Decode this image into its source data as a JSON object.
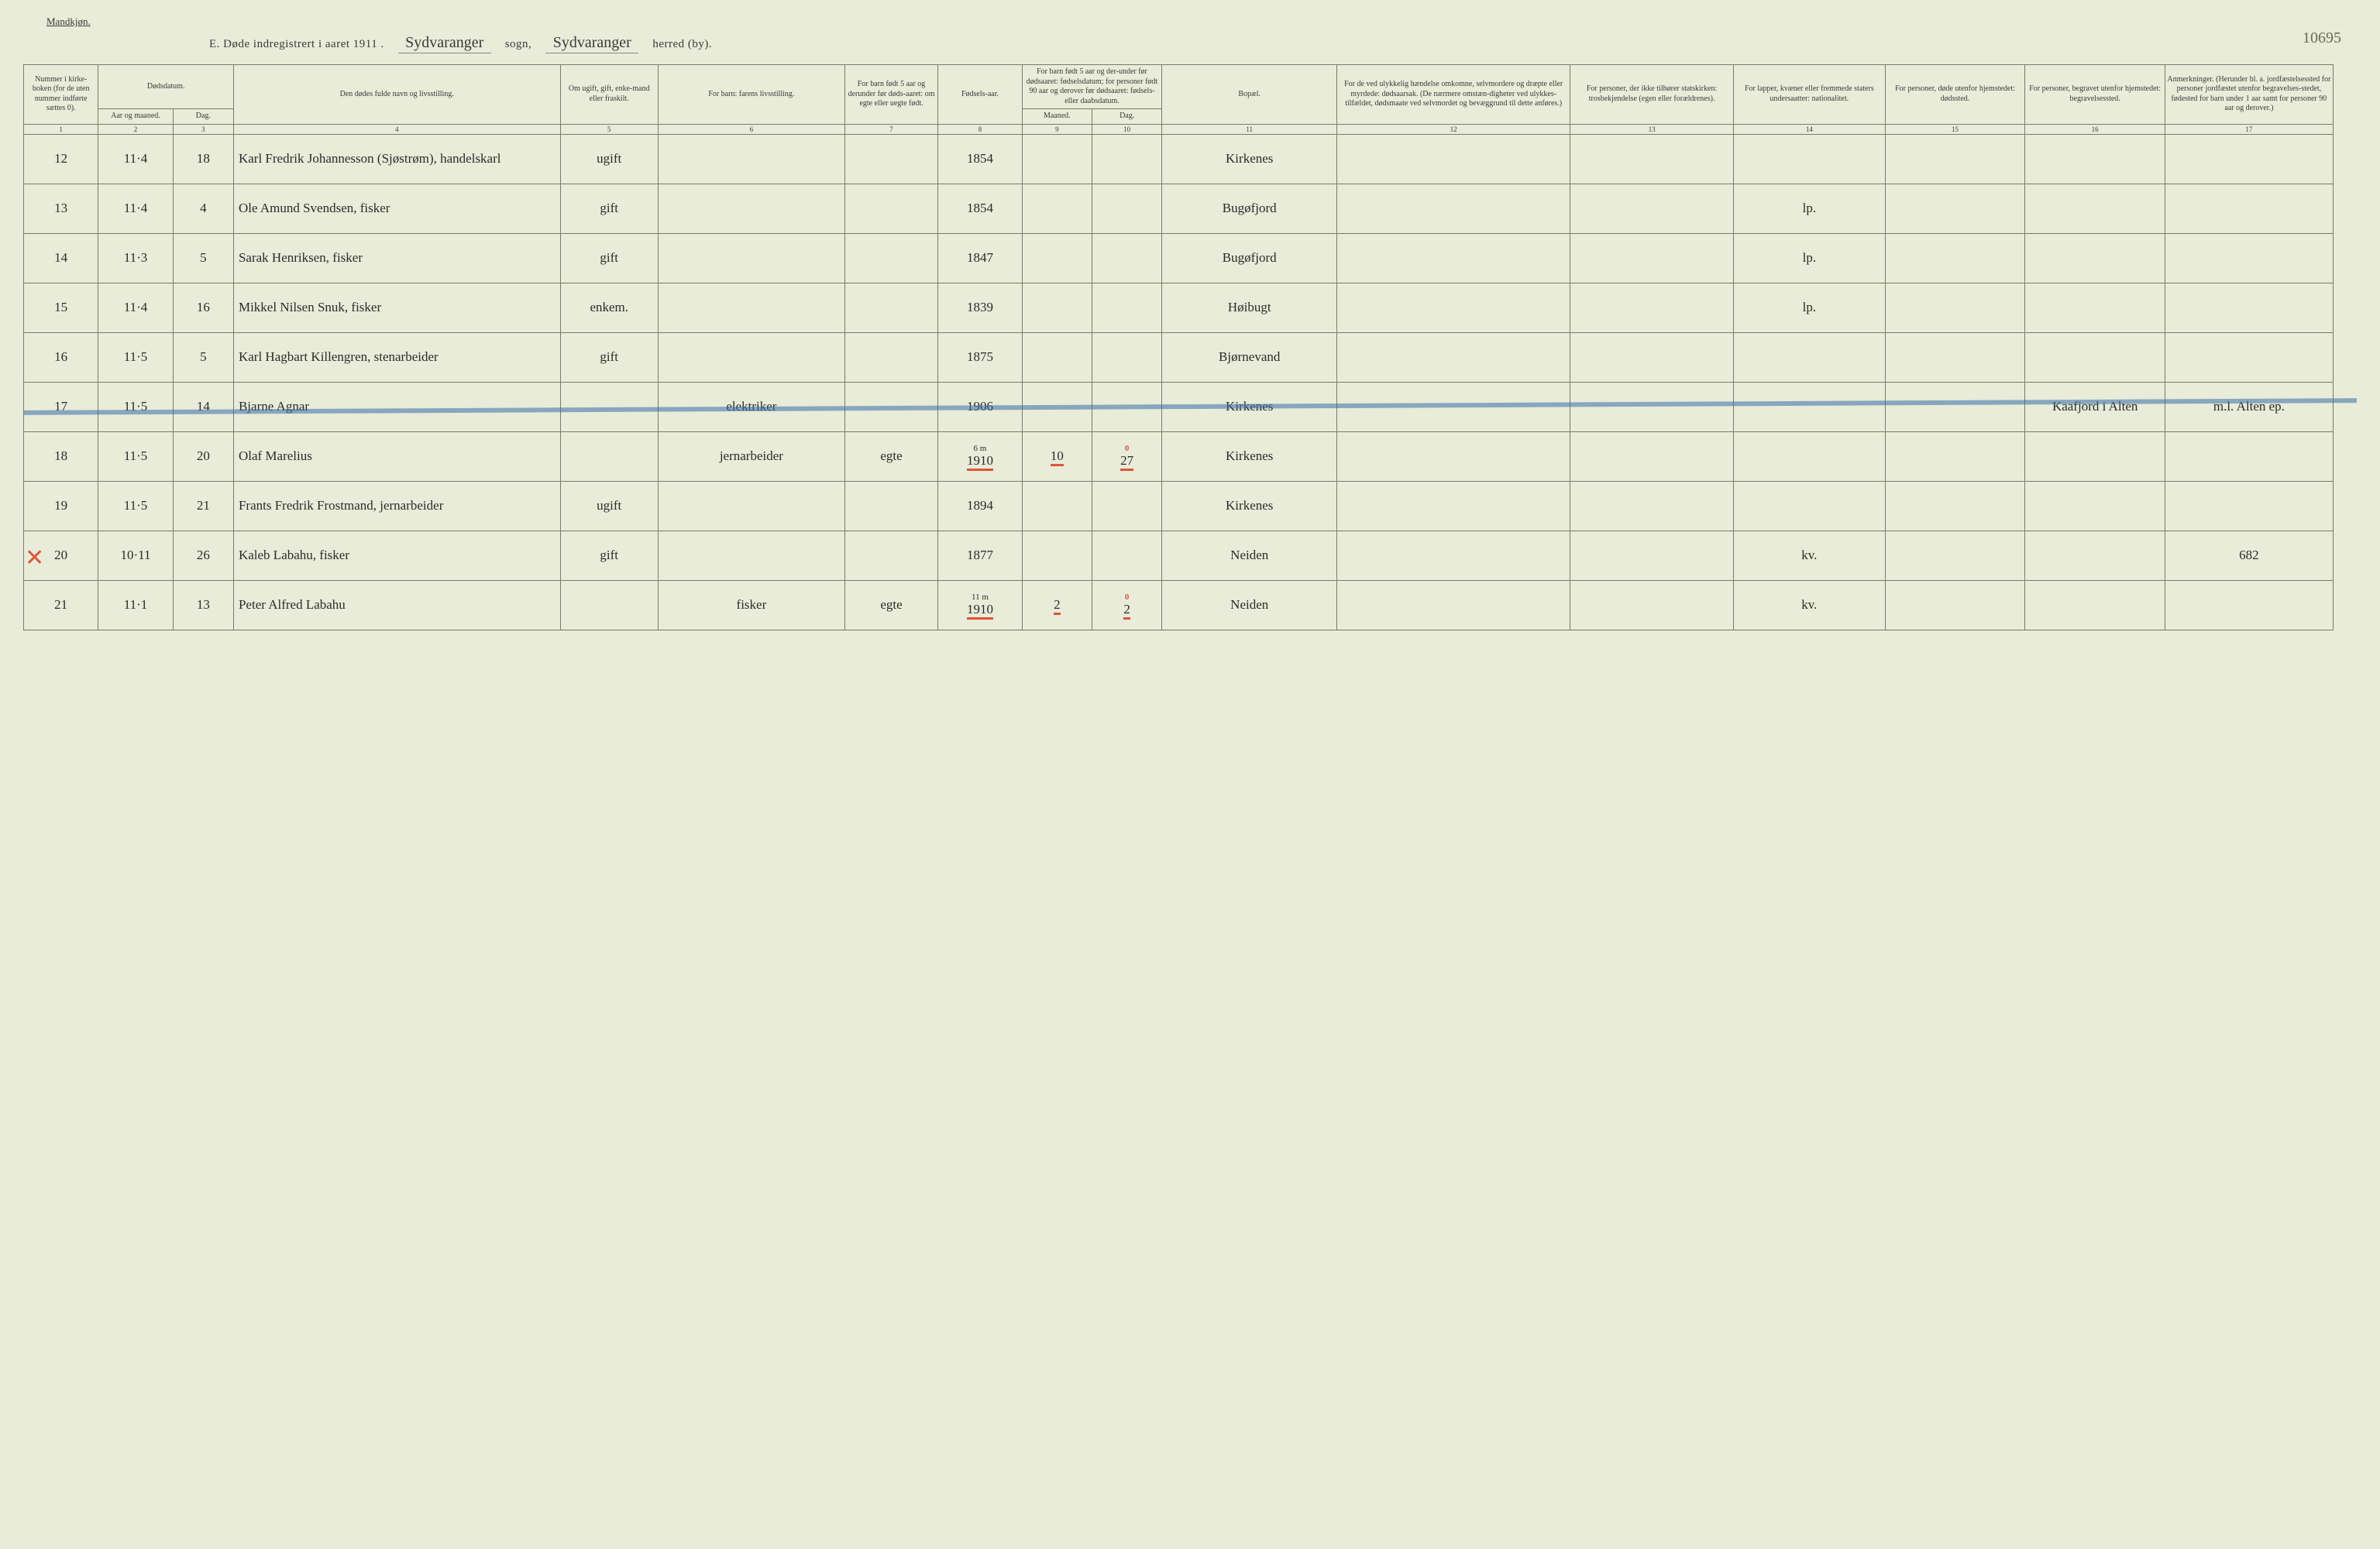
{
  "top_label": "Mandkjøn.",
  "title": {
    "prefix": "E.   Døde indregistrert i aaret 191",
    "year_suffix": "1 .",
    "sogn_script": "Sydvaranger",
    "sogn_label": "sogn,",
    "herred_script": "Sydvaranger",
    "herred_label": "herred (by)."
  },
  "corner_note": "10695",
  "headers": {
    "h1": "Nummer i kirke-boken (for de uten nummer indførte sættes 0).",
    "h2_top": "Dødsdatum.",
    "h2a": "Aar og maaned.",
    "h2b": "Dag.",
    "h4": "Den dødes fulde navn og livsstilling.",
    "h5": "Om ugift, gift, enke-mand eller fraskilt.",
    "h6": "For barn: farens livsstilling.",
    "h7": "For barn født 5 aar og derunder før døds-aaret: om egte eller uegte født.",
    "h8": "Fødsels-aar.",
    "h9_top": "For barn født 5 aar og der-under før dødsaaret: fødselsdatum; for personer født 90 aar og derover før dødsaaret: fødsels- eller daabsdatum.",
    "h9a": "Maaned.",
    "h9b": "Dag.",
    "h11": "Bopæl.",
    "h12": "For de ved ulykkelig hændelse omkomne, selvmordere og dræpte eller myrdede: dødsaarsak. (De nærmere omstæn-digheter ved ulykkes-tilfældet, dødsmaate ved selvmordet og bevæggrund til dette anføres.)",
    "h13": "For personer, der ikke tilhører statskirken: trosbekjendelse (egen eller forældrenes).",
    "h14": "For lapper, kvæner eller fremmede staters undersaatter: nationalitet.",
    "h15": "For personer, døde utenfor hjemstedet: dødssted.",
    "h16": "For personer, begravet utenfor hjemstedet: begravelsessted.",
    "h17": "Anmerkninger. (Herunder bl. a. jordfæstelsessted for personer jordfæstet utenfor begravelses-stedet, fødested for barn under 1 aar samt for personer 90 aar og derover.)"
  },
  "colnums": [
    "1",
    "2",
    "3",
    "4",
    "5",
    "6",
    "7",
    "8",
    "9",
    "10",
    "11",
    "12",
    "13",
    "14",
    "15",
    "16",
    "17"
  ],
  "rows": [
    {
      "c1": "12",
      "c2": "11·4",
      "c3": "18",
      "c4": "Karl Fredrik Johannesson (Sjøstrøm), handelskarl",
      "c5": "ugift",
      "c6": "",
      "c7": "",
      "c8": "1854",
      "c9": "",
      "c10": "",
      "c11": "Kirkenes",
      "c14": "",
      "c17": ""
    },
    {
      "c1": "13",
      "c2": "11·4",
      "c3": "4",
      "c4": "Ole Amund Svendsen, fisker",
      "c5": "gift",
      "c6": "",
      "c7": "",
      "c8": "1854",
      "c9": "",
      "c10": "",
      "c11": "Bugøfjord",
      "c14": "lp.",
      "c17": ""
    },
    {
      "c1": "14",
      "c2": "11·3",
      "c3": "5",
      "c4": "Sarak Henriksen, fisker",
      "c5": "gift",
      "c6": "",
      "c7": "",
      "c8": "1847",
      "c9": "",
      "c10": "",
      "c11": "Bugøfjord",
      "c14": "lp.",
      "c17": ""
    },
    {
      "c1": "15",
      "c2": "11·4",
      "c3": "16",
      "c4": "Mikkel Nilsen Snuk, fisker",
      "c5": "enkem.",
      "c6": "",
      "c7": "",
      "c8": "1839",
      "c9": "",
      "c10": "",
      "c11": "Høibugt",
      "c14": "lp.",
      "c17": ""
    },
    {
      "c1": "16",
      "c2": "11·5",
      "c3": "5",
      "c4": "Karl Hagbart Killengren, stenarbeider",
      "c5": "gift",
      "c6": "",
      "c7": "",
      "c8": "1875",
      "c9": "",
      "c10": "",
      "c11": "Bjørnevand",
      "c14": "",
      "c17": ""
    },
    {
      "c1": "17",
      "c2": "11·5",
      "c3": "14",
      "c4": "Bjarne Agnar",
      "c5": "",
      "c6": "elektriker",
      "c7": "",
      "c8": "1906",
      "c9": "",
      "c10": "",
      "c11": "Kirkenes",
      "c14": "",
      "c16": "Kaafjord i Alten",
      "c17": "m.l. Alten ep.",
      "struck": true
    },
    {
      "c1": "18",
      "c2": "11·5",
      "c3": "20",
      "c4": "Olaf Marelius",
      "c5": "",
      "c6": "jernarbeider",
      "c7": "egte",
      "c8": "1910",
      "c8_anno": "6 m",
      "c9": "10",
      "c10": "27",
      "c10_anno": "0",
      "c11": "Kirkenes",
      "c14": "",
      "c17": "",
      "red_under": true
    },
    {
      "c1": "19",
      "c2": "11·5",
      "c3": "21",
      "c4": "Frants Fredrik Frostmand, jernarbeider",
      "c5": "ugift",
      "c6": "",
      "c7": "",
      "c8": "1894",
      "c9": "",
      "c10": "",
      "c11": "Kirkenes",
      "c14": "",
      "c17": ""
    },
    {
      "c1": "20",
      "c2": "10·11",
      "c3": "26",
      "c4": "Kaleb Labahu, fisker",
      "c5": "gift",
      "c6": "",
      "c7": "",
      "c8": "1877",
      "c9": "",
      "c10": "",
      "c11": "Neiden",
      "c14": "kv.",
      "c17": "682",
      "red_x": true
    },
    {
      "c1": "21",
      "c2": "11·1",
      "c3": "13",
      "c4": "Peter Alfred Labahu",
      "c5": "",
      "c6": "fisker",
      "c7": "egte",
      "c8": "1910",
      "c8_anno": "11 m",
      "c9": "2",
      "c10": "2",
      "c10_anno": "0",
      "c11": "Neiden",
      "c14": "kv.",
      "c17": "",
      "red_under": true
    }
  ]
}
